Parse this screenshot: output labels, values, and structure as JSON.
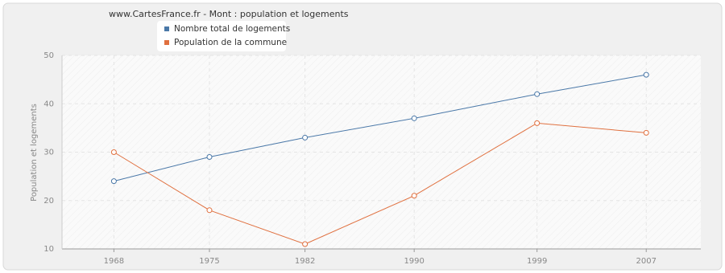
{
  "chart_data": {
    "type": "line",
    "title": "www.CartesFrance.fr - Mont : population et logements",
    "y_label": "Population et logements",
    "x": [
      1968,
      1975,
      1982,
      1990,
      1999,
      2007
    ],
    "series": [
      {
        "name": "Nombre total de logements",
        "color": "#4a78a8",
        "values": [
          24,
          29,
          33,
          37,
          42,
          46
        ]
      },
      {
        "name": "Population de la commune",
        "color": "#e0703f",
        "values": [
          30,
          18,
          11,
          21,
          36,
          34
        ]
      }
    ],
    "xlim": [
      1964.2,
      2011
    ],
    "xticks": [
      1968,
      1975,
      1982,
      1990,
      1999,
      2007
    ],
    "ylim": [
      10,
      50
    ],
    "yticks": [
      10,
      20,
      30,
      40,
      50
    ],
    "grid": true
  }
}
